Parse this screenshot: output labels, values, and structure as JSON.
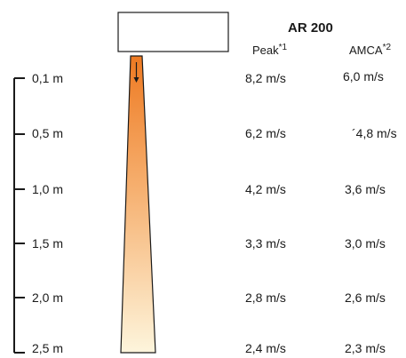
{
  "model": "AR 200",
  "columns": {
    "peak": {
      "label": "Peak",
      "note": "*1"
    },
    "amca": {
      "label": "AMCA",
      "note": "*2"
    }
  },
  "rows": [
    {
      "distance": "0,1 m",
      "peak": "8,2 m/s",
      "amca": "6,0 m/s"
    },
    {
      "distance": "0,5 m",
      "peak": "6,2 m/s",
      "amca": "´4,8 m/s"
    },
    {
      "distance": "1,0 m",
      "peak": "4,2 m/s",
      "amca": "3,6 m/s"
    },
    {
      "distance": "1,5 m",
      "peak": "3,3 m/s",
      "amca": "3,0 m/s"
    },
    {
      "distance": "2,0 m",
      "peak": "2,8 m/s",
      "amca": "2,6 m/s"
    },
    {
      "distance": "2,5 m",
      "peak": "2,4 m/s",
      "amca": "2,3 m/s"
    }
  ],
  "colors": {
    "jet_top": "#ee7a22",
    "jet_bottom": "#fdf5dc",
    "outline": "#1a1a1a"
  }
}
